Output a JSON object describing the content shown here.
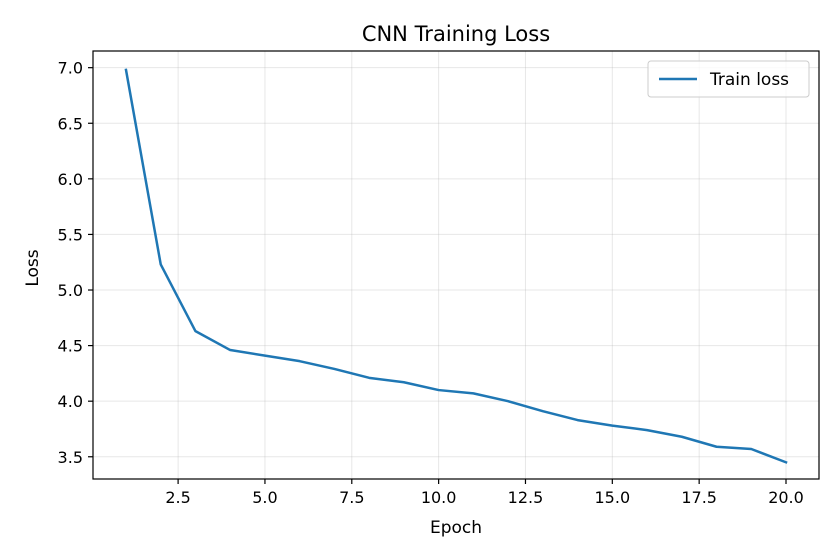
{
  "chart_data": {
    "type": "line",
    "title": "CNN Training Loss",
    "xlabel": "Epoch",
    "ylabel": "Loss",
    "xlim": [
      0.05,
      20.95
    ],
    "ylim": [
      3.3,
      7.15
    ],
    "xticks": [
      2.5,
      5.0,
      7.5,
      10.0,
      12.5,
      15.0,
      17.5,
      20.0
    ],
    "xtick_labels": [
      "2.5",
      "5.0",
      "7.5",
      "10.0",
      "12.5",
      "15.0",
      "17.5",
      "20.0"
    ],
    "yticks": [
      3.5,
      4.0,
      4.5,
      5.0,
      5.5,
      6.0,
      6.5,
      7.0
    ],
    "ytick_labels": [
      "3.5",
      "4.0",
      "4.5",
      "5.0",
      "5.5",
      "6.0",
      "6.5",
      "7.0"
    ],
    "grid": true,
    "legend_position": "top-right",
    "series": [
      {
        "name": "Train loss",
        "color": "#1f77b4",
        "x": [
          1,
          2,
          3,
          4,
          5,
          6,
          7,
          8,
          9,
          10,
          11,
          12,
          13,
          14,
          15,
          16,
          17,
          18,
          19,
          20
        ],
        "y": [
          6.98,
          5.23,
          4.63,
          4.46,
          4.41,
          4.36,
          4.29,
          4.21,
          4.17,
          4.1,
          4.07,
          4.0,
          3.91,
          3.83,
          3.78,
          3.74,
          3.68,
          3.59,
          3.57,
          3.45
        ]
      }
    ]
  }
}
